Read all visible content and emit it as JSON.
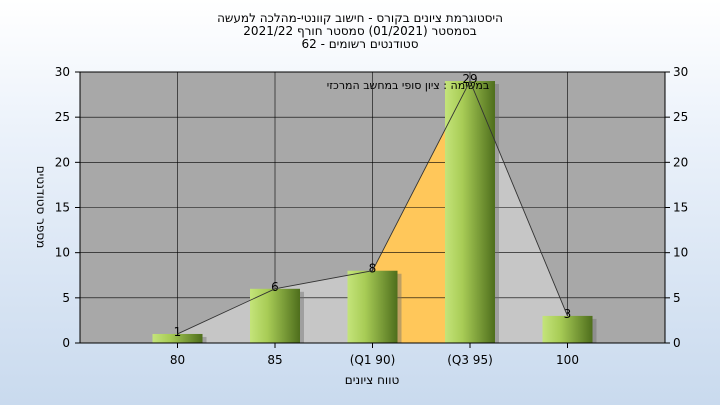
{
  "chart_data": {
    "type": "bar",
    "title_lines": [
      "היסטוגרמת ציונים בקורס - חישוב קוונטי-מהלכה למעשה",
      "בסמסטר  (01/2021)  סמסטר חורף 2021/22",
      "62 - סטודנטים רשומים"
    ],
    "annotation": "במשימה : ציון סופי במחשב המרכזי",
    "xlabel": "טווח ציונים",
    "ylabel": "מספר סטודנטים",
    "categories": [
      "80",
      "85",
      "(Q1 90)",
      "(Q3 95)",
      "100"
    ],
    "values": [
      1,
      6,
      8,
      29,
      3
    ],
    "value_labels": [
      "1",
      "6",
      "8",
      "29",
      "3"
    ],
    "ylim": [
      0,
      30
    ],
    "yticks": [
      0,
      5,
      10,
      15,
      20,
      25,
      30
    ],
    "grid": true,
    "colors": {
      "plot_bg": "#a8a8a8",
      "area_gray": "#c6c6c6",
      "area_iqr": "#ffc75a",
      "bar_light": "#d2ec8a",
      "bar_dark": "#4e6e1c"
    }
  }
}
